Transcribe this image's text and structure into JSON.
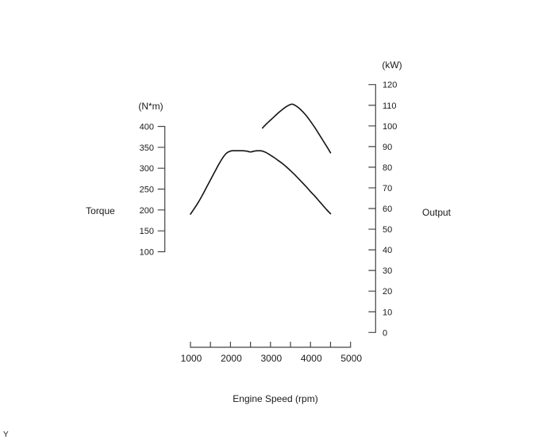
{
  "page": {
    "corner_label": "Y"
  },
  "chart_data": {
    "type": "line",
    "title": "",
    "x_axis": {
      "label": "Engine Speed (rpm)",
      "ticks": [
        1000,
        2000,
        3000,
        4000,
        5000
      ],
      "minor_step": 500,
      "range": [
        1000,
        5000
      ]
    },
    "left_axis": {
      "label": "Torque",
      "unit": "(N*m)",
      "ticks": [
        400,
        350,
        300,
        250,
        200,
        150,
        100
      ],
      "range": [
        100,
        400
      ]
    },
    "right_axis": {
      "label": "Output",
      "unit": "(kW)",
      "ticks": [
        120,
        110,
        100,
        90,
        80,
        70,
        60,
        50,
        40,
        30,
        20,
        10,
        0
      ],
      "range": [
        0,
        120
      ]
    },
    "legend": "none",
    "grid": false,
    "series": [
      {
        "name": "torque-curve",
        "axis": "left",
        "units": "N*m",
        "points": [
          [
            1000,
            190
          ],
          [
            1100,
            204
          ],
          [
            1200,
            219
          ],
          [
            1300,
            236
          ],
          [
            1400,
            254
          ],
          [
            1500,
            272
          ],
          [
            1600,
            290
          ],
          [
            1700,
            308
          ],
          [
            1800,
            324
          ],
          [
            1900,
            336
          ],
          [
            2000,
            341
          ],
          [
            2100,
            342
          ],
          [
            2200,
            342
          ],
          [
            2300,
            342
          ],
          [
            2400,
            341
          ],
          [
            2500,
            339
          ],
          [
            2600,
            341
          ],
          [
            2700,
            342
          ],
          [
            2800,
            341
          ],
          [
            2900,
            337
          ],
          [
            3000,
            331
          ],
          [
            3100,
            325
          ],
          [
            3200,
            318
          ],
          [
            3300,
            311
          ],
          [
            3400,
            303
          ],
          [
            3500,
            294
          ],
          [
            3600,
            285
          ],
          [
            3700,
            275
          ],
          [
            3800,
            265
          ],
          [
            3900,
            255
          ],
          [
            4000,
            244
          ],
          [
            4100,
            234
          ],
          [
            4200,
            223
          ],
          [
            4300,
            212
          ],
          [
            4400,
            201
          ],
          [
            4500,
            191
          ]
        ]
      },
      {
        "name": "output-curve",
        "axis": "right",
        "units": "kW",
        "points": [
          [
            2800,
            99
          ],
          [
            2900,
            101
          ],
          [
            3000,
            102.8
          ],
          [
            3100,
            104.6
          ],
          [
            3200,
            106.4
          ],
          [
            3300,
            108
          ],
          [
            3400,
            109.4
          ],
          [
            3500,
            110.4
          ],
          [
            3550,
            110.5
          ],
          [
            3600,
            110.1
          ],
          [
            3700,
            108.8
          ],
          [
            3800,
            107
          ],
          [
            3900,
            104.8
          ],
          [
            4000,
            102.2
          ],
          [
            4100,
            99.4
          ],
          [
            4200,
            96.4
          ],
          [
            4300,
            93.3
          ],
          [
            4400,
            90.2
          ],
          [
            4500,
            87
          ]
        ]
      }
    ],
    "colors": {
      "curve": "#141414",
      "axis": "#444444",
      "text": "#1a1a1a"
    }
  }
}
